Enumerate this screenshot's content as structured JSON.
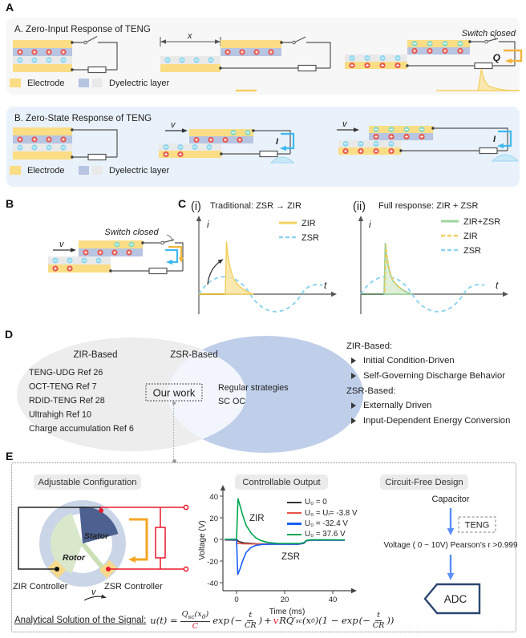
{
  "panel_labels": {
    "a": "A",
    "b": "B",
    "c": "C",
    "d": "D",
    "e": "E"
  },
  "symbols": {
    "bullet": "➢"
  },
  "panelA": {
    "zir": {
      "title": "A. Zero-Input Response of TENG",
      "legend_electrode": "Electrode",
      "legend_dielectric": "Dyelectric layer",
      "x_label": "x",
      "switch_closed": "Switch closed",
      "q_label": "Q"
    },
    "zsr": {
      "title": "B. Zero-State Response of TENG",
      "legend_electrode": "Electrode",
      "legend_dielectric": "Dyelectric layer",
      "v_label": "v",
      "i_label": "I"
    }
  },
  "panelB": {
    "switch_closed": "Switch closed",
    "v_label": "v"
  },
  "panelD": {
    "left_title": "ZIR-Based",
    "left_items": [
      "TENG-UDG Ref 26",
      "OCT-TENG Ref 7",
      "RDID-TENG Ref 28",
      "Ultrahigh Ref 10",
      "Charge accumulation Ref 6"
    ],
    "right_title": "ZSR-Based",
    "right_items": [
      "Regular strategies",
      "SC OC"
    ],
    "center_label": "Our work",
    "notes": {
      "zir_header": "ZIR-Based:",
      "zir_points": [
        "Initial Condition-Driven",
        "Self-Governing Discharge Behavior"
      ],
      "zsr_header": "ZSR-Based:",
      "zsr_points": [
        "Externally Driven",
        "Input-Dependent Energy Conversion"
      ]
    }
  },
  "panelE": {
    "headings": [
      "Adjustable Configuration",
      "Controllable Output",
      "Circuit-Free Design"
    ],
    "left": {
      "stator": "Stator",
      "rotor": "Rotor",
      "zir_controller": "ZIR Controller",
      "zsr_controller": "ZSR Controller",
      "v_label": "v"
    },
    "right": {
      "capacitor": "Capacitor",
      "teng": "TENG",
      "voltage_line": "Voltage ( 0 ~ 10V) Pearson's r >0.999",
      "adc": "ADC"
    },
    "formula": {
      "label": "Analytical Solution of the Signal:",
      "lhs": "u(t) =",
      "num_q": "Q",
      "num_sub": "sc",
      "num_arg_open": "(x",
      "num_arg_sub": "0",
      "num_arg_close": ")",
      "den": "C",
      "exp": "exp",
      "paren_open": "(−",
      "frac_t": "t",
      "frac_cr": "CR",
      "paren_close": ")",
      "plus": "+",
      "v": "v",
      "term2": "RQ′",
      "term2_sub": "sc",
      "term2_open": "(x",
      "term2_sub0": "0",
      "term2_close": ")(1 − exp",
      "paren_open2": "(−",
      "frac_t2": "t",
      "frac_cr2": "CR",
      "paren_close2": "))"
    }
  },
  "chart_data": [
    {
      "type": "line",
      "index": "(i)",
      "title": "Traditional: ZSR → ZIR",
      "xlabel": "t",
      "ylabel": "i",
      "legend_position": "top-right",
      "series": [
        {
          "name": "ZIR",
          "style": "solid-filled",
          "color": "#F5D060",
          "description": "sharp discharge spike after switch closes, exponential decay to zero"
        },
        {
          "name": "ZSR",
          "style": "dashed",
          "color": "#8FD3F0",
          "description": "sinusoidal current from continuous motion"
        }
      ]
    },
    {
      "type": "line",
      "index": "(ii)",
      "title": "Full response: ZIR + ZSR",
      "xlabel": "t",
      "ylabel": "i",
      "legend_position": "top-right",
      "series": [
        {
          "name": "ZIR+ZSR",
          "style": "solid-filled",
          "color": "#97CE93",
          "description": "superposed full response spike"
        },
        {
          "name": "ZIR",
          "style": "dashed",
          "color": "#F2CE5C",
          "description": "zero-input spike component"
        },
        {
          "name": "ZSR",
          "style": "dashed",
          "color": "#8FD3F0",
          "description": "sinusoidal zero-state component"
        }
      ]
    },
    {
      "type": "line",
      "title": "Controllable Output",
      "xlabel": "Time (ms)",
      "ylabel": "Voltage (V)",
      "xlim": [
        -6,
        46
      ],
      "ylim": [
        -45,
        45
      ],
      "xticks": [
        0,
        20,
        40
      ],
      "yticks": [
        40,
        20,
        0,
        -20,
        -40
      ],
      "grid": false,
      "legend_position": "top-right",
      "annotations": [
        "ZIR",
        "ZSR"
      ],
      "series": [
        {
          "name": "U₀ = 0",
          "color": "#333333",
          "points": [
            [
              -5,
              0
            ],
            [
              0,
              0
            ],
            [
              1,
              -2
            ],
            [
              3,
              -3.2
            ],
            [
              8,
              -4
            ],
            [
              15,
              -4.3
            ],
            [
              26,
              -4.3
            ],
            [
              28,
              -3.5
            ],
            [
              29,
              -1.2
            ],
            [
              31,
              -0.5
            ],
            [
              45,
              -0.6
            ]
          ]
        },
        {
          "name": "U₀ = Uᵢ= -3.8 V",
          "color": "#E8534A",
          "points": [
            [
              -5,
              -0.6
            ],
            [
              0,
              -0.8
            ],
            [
              0.4,
              -3.8
            ],
            [
              3,
              -4
            ],
            [
              10,
              -4.3
            ],
            [
              26,
              -4.4
            ],
            [
              28,
              -3.6
            ],
            [
              29,
              -1.3
            ],
            [
              31,
              -0.6
            ],
            [
              45,
              -0.7
            ]
          ]
        },
        {
          "name": "U₀ = -32.4 V",
          "color": "#1A5EF5",
          "points": [
            [
              -5,
              -0.4
            ],
            [
              0,
              -0.5
            ],
            [
              0.5,
              -32.4
            ],
            [
              1.5,
              -27
            ],
            [
              2.5,
              -20
            ],
            [
              4,
              -12
            ],
            [
              6,
              -7.5
            ],
            [
              8,
              -5.5
            ],
            [
              11,
              -4.6
            ],
            [
              15,
              -4.4
            ],
            [
              26,
              -4.4
            ],
            [
              28,
              -3.5
            ],
            [
              29,
              -1.2
            ],
            [
              31,
              -0.6
            ],
            [
              45,
              -0.7
            ]
          ]
        },
        {
          "name": "U₀ =  37.6 V",
          "color": "#00A651",
          "points": [
            [
              -5,
              0
            ],
            [
              0,
              0.3
            ],
            [
              0.6,
              37.6
            ],
            [
              1.6,
              30
            ],
            [
              2.6,
              22
            ],
            [
              4,
              13
            ],
            [
              6,
              6
            ],
            [
              8,
              1.5
            ],
            [
              10,
              -1
            ],
            [
              13,
              -2.8
            ],
            [
              17,
              -3.6
            ],
            [
              26,
              -3.8
            ],
            [
              28,
              -3
            ],
            [
              29,
              -0.9
            ],
            [
              31,
              -0.3
            ],
            [
              45,
              -0.4
            ]
          ]
        }
      ]
    }
  ]
}
